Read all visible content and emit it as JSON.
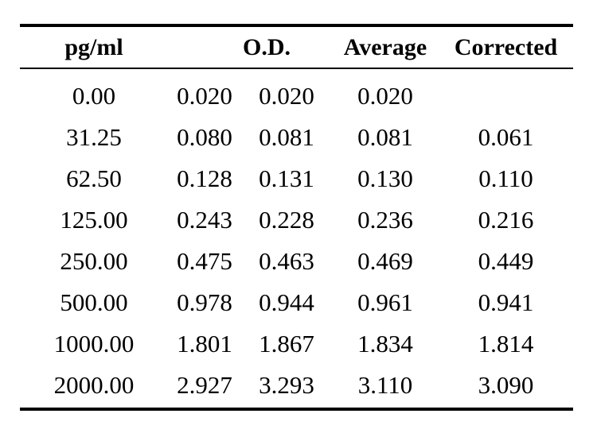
{
  "table": {
    "headers": {
      "pg": "pg/ml",
      "od": "O.D.",
      "average": "Average",
      "corrected": "Corrected"
    },
    "rows": [
      {
        "pg": "0.00",
        "od1": "0.020",
        "od2": "0.020",
        "average": "0.020",
        "corrected": ""
      },
      {
        "pg": "31.25",
        "od1": "0.080",
        "od2": "0.081",
        "average": "0.081",
        "corrected": "0.061"
      },
      {
        "pg": "62.50",
        "od1": "0.128",
        "od2": "0.131",
        "average": "0.130",
        "corrected": "0.110"
      },
      {
        "pg": "125.00",
        "od1": "0.243",
        "od2": "0.228",
        "average": "0.236",
        "corrected": "0.216"
      },
      {
        "pg": "250.00",
        "od1": "0.475",
        "od2": "0.463",
        "average": "0.469",
        "corrected": "0.449"
      },
      {
        "pg": "500.00",
        "od1": "0.978",
        "od2": "0.944",
        "average": "0.961",
        "corrected": "0.941"
      },
      {
        "pg": "1000.00",
        "od1": "1.801",
        "od2": "1.867",
        "average": "1.834",
        "corrected": "1.814"
      },
      {
        "pg": "2000.00",
        "od1": "2.927",
        "od2": "3.293",
        "average": "3.110",
        "corrected": "3.090"
      }
    ]
  }
}
